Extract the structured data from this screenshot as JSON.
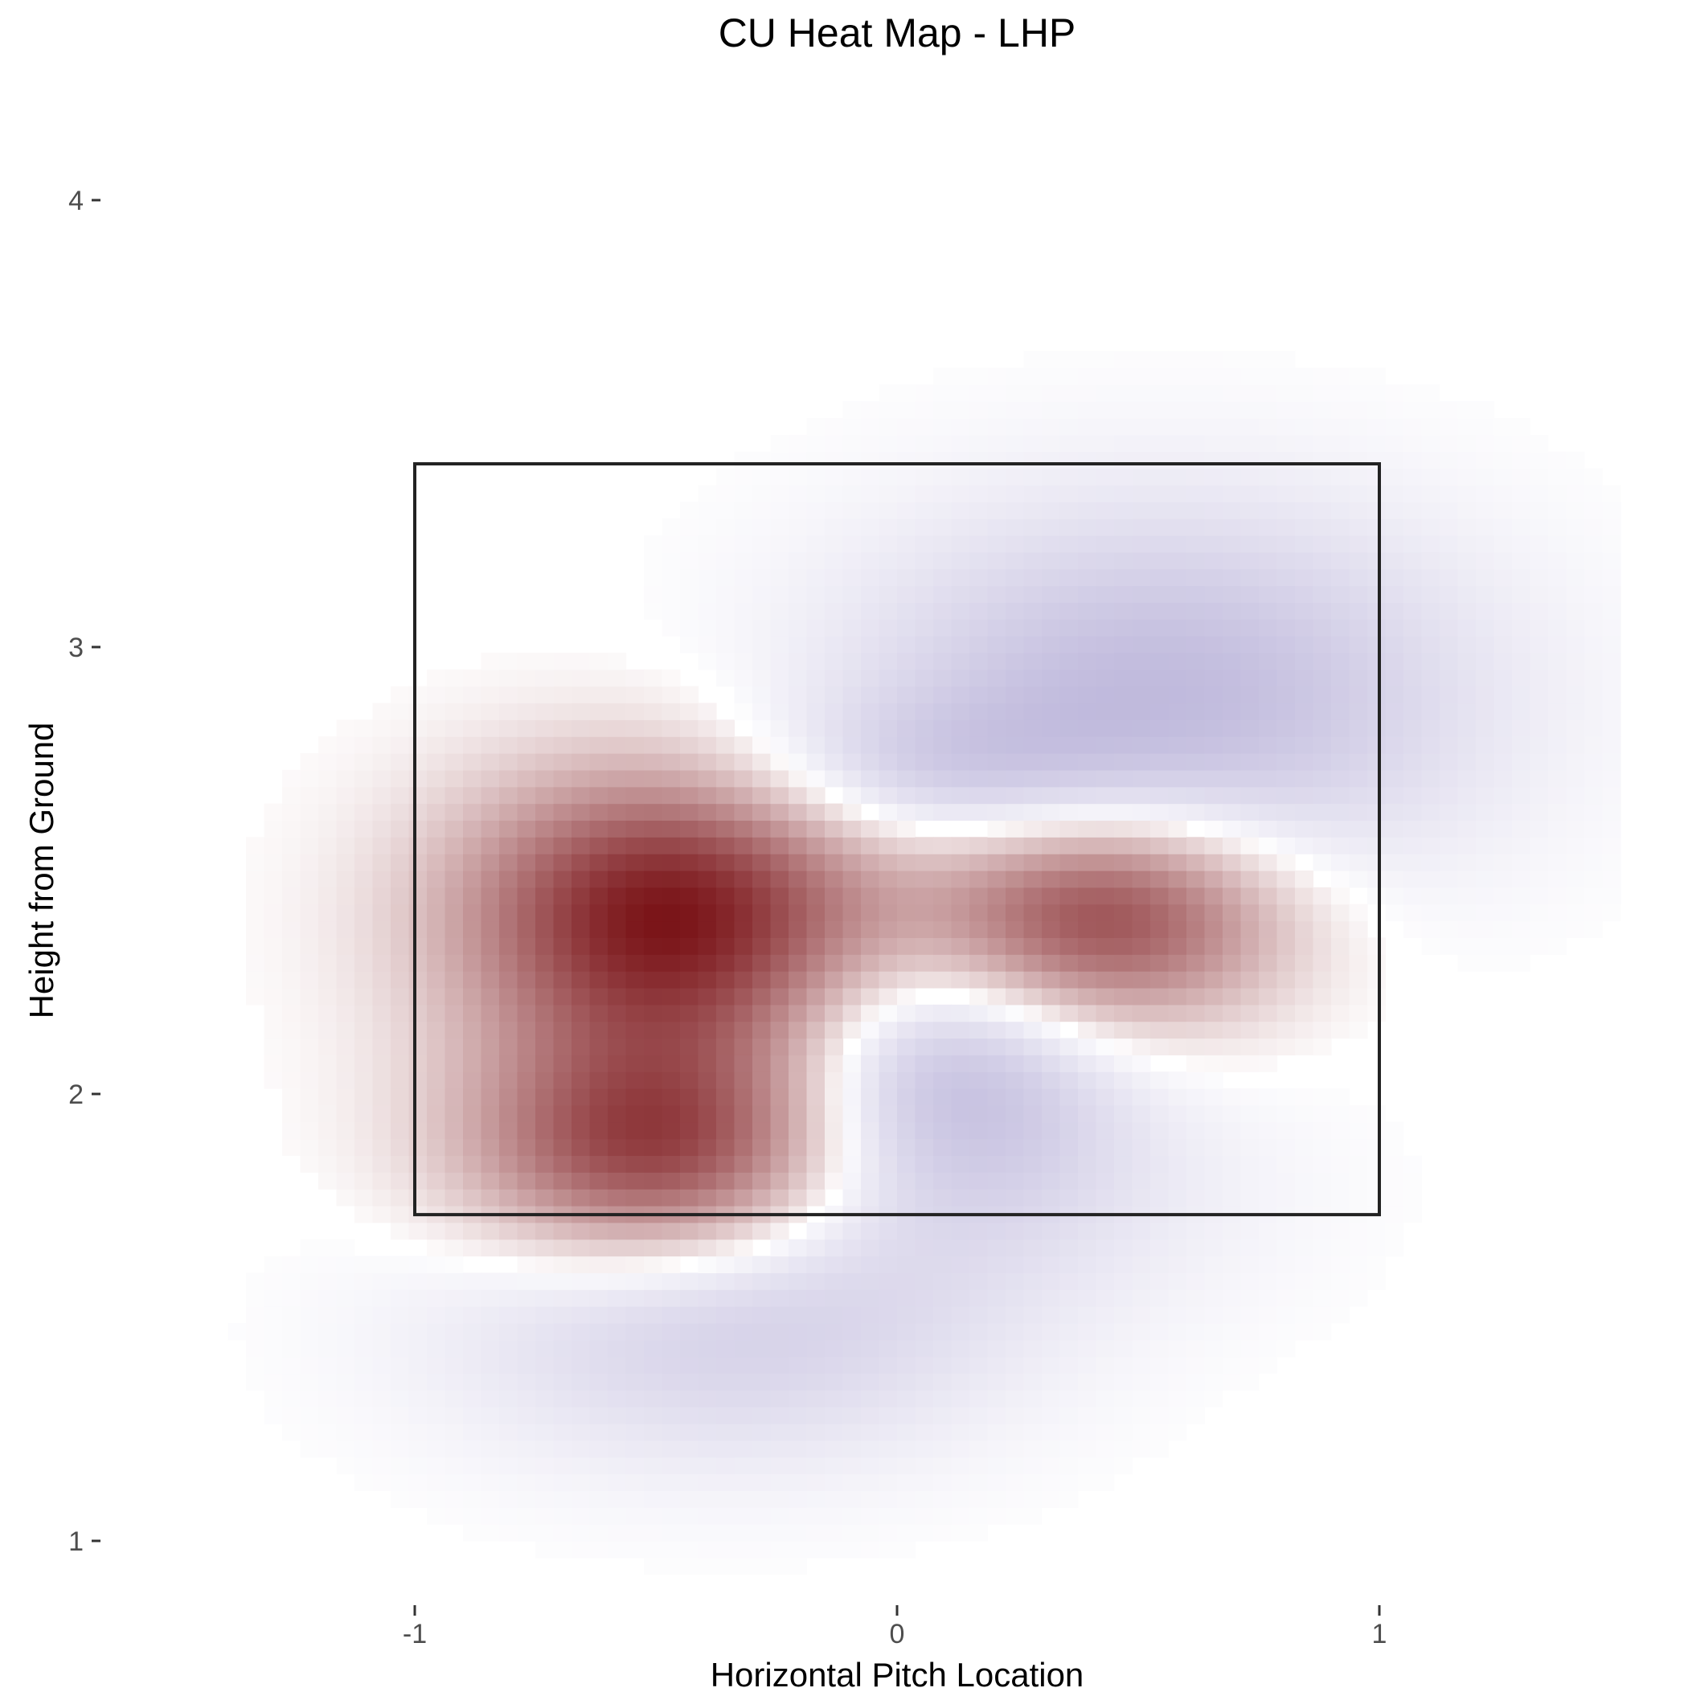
{
  "chart_data": {
    "type": "heatmap",
    "title": "CU Heat Map - LHP",
    "xlabel": "Horizontal Pitch Location",
    "ylabel": "Height from Ground",
    "xlim": [
      -1.5,
      1.5
    ],
    "ylim": [
      0.85,
      4.3
    ],
    "x_ticks": [
      -1,
      0,
      1
    ],
    "y_ticks": [
      1,
      2,
      3,
      4
    ],
    "x_tick_labels": [
      "-1",
      "0",
      "1"
    ],
    "y_tick_labels": [
      "1",
      "2",
      "3",
      "4"
    ],
    "grid": false,
    "legend": "none",
    "strike_zone": {
      "x": [
        -1.0,
        1.0
      ],
      "y": [
        1.73,
        3.41
      ]
    },
    "color_scale": {
      "positive": "#7a1418",
      "midpoint": "#ffffff",
      "negative": "#8a7fbf"
    },
    "cell_size": {
      "dx": 0.0375,
      "dy": 0.0375
    },
    "hotspots": [
      {
        "x": -0.47,
        "y": 2.4,
        "value": 1.0,
        "sx": 0.3,
        "sy": 0.22
      },
      {
        "x": 0.42,
        "y": 2.4,
        "value": 0.82,
        "sx": 0.26,
        "sy": 0.17
      },
      {
        "x": -0.5,
        "y": 1.88,
        "value": 0.82,
        "sx": 0.27,
        "sy": 0.18
      },
      {
        "x": 0.55,
        "y": 2.88,
        "value": -0.48,
        "sx": 0.44,
        "sy": 0.29
      },
      {
        "x": 0.1,
        "y": 2.05,
        "value": -0.45,
        "sx": 0.24,
        "sy": 0.21
      },
      {
        "x": -0.35,
        "y": 1.5,
        "value": -0.32,
        "sx": 0.4,
        "sy": 0.22
      },
      {
        "x": 0.05,
        "y": 2.72,
        "value": -0.22,
        "sx": 0.28,
        "sy": 0.12
      },
      {
        "x": 0.35,
        "y": 1.78,
        "value": -0.1,
        "sx": 0.35,
        "sy": 0.2
      }
    ]
  }
}
